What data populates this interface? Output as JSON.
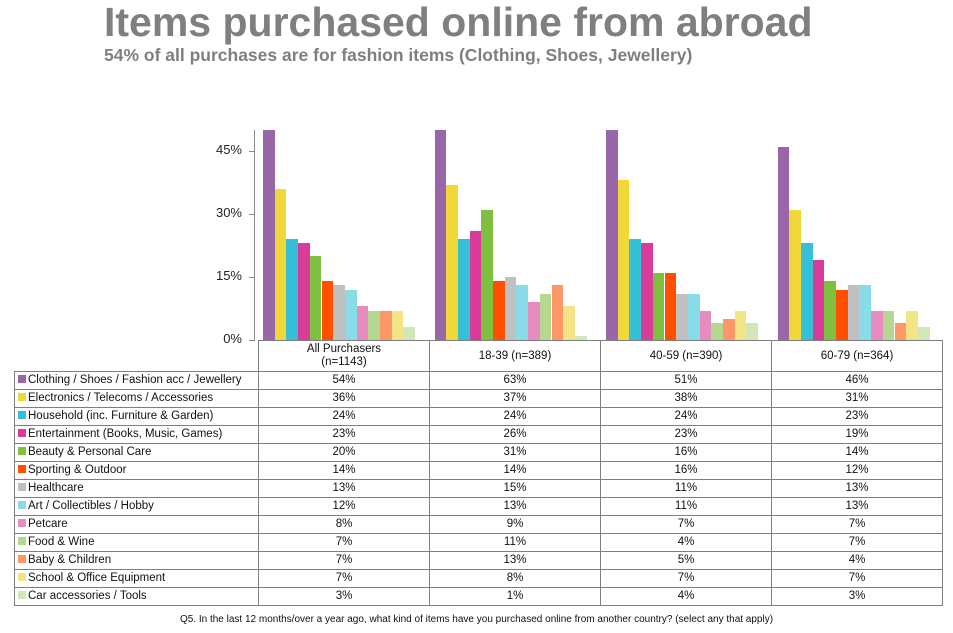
{
  "title": "Items purchased online from abroad",
  "subtitle": "54% of all purchases are for fashion items (Clothing, Shoes, Jewellery)",
  "footnote": "Q5. In the last 12 months/over a year ago, what kind of items have you purchased online from another country? (select any that apply)",
  "y_ticks": [
    "45%",
    "30%",
    "15%",
    "0%"
  ],
  "table": {
    "headers": [
      "All Purchasers\n(n=1143)",
      "18-39 (n=389)",
      "40-59 (n=390)",
      "60-79 (n=364)"
    ],
    "rows": [
      {
        "label": "Clothing / Shoes / Fashion acc / Jewellery",
        "color": "#9966a8",
        "values": [
          "54%",
          "63%",
          "51%",
          "46%"
        ]
      },
      {
        "label": "Electronics / Telecoms / Accessories",
        "color": "#f0d838",
        "values": [
          "36%",
          "37%",
          "38%",
          "31%"
        ]
      },
      {
        "label": "Household (inc. Furniture & Garden)",
        "color": "#36c0d8",
        "values": [
          "24%",
          "24%",
          "24%",
          "23%"
        ]
      },
      {
        "label": "Entertainment (Books, Music, Games)",
        "color": "#d83c98",
        "values": [
          "23%",
          "26%",
          "23%",
          "19%"
        ]
      },
      {
        "label": "Beauty & Personal Care",
        "color": "#80c040",
        "values": [
          "20%",
          "31%",
          "16%",
          "14%"
        ]
      },
      {
        "label": "Sporting & Outdoor",
        "color": "#ff5000",
        "values": [
          "14%",
          "14%",
          "16%",
          "12%"
        ]
      },
      {
        "label": "Healthcare",
        "color": "#c0c0c0",
        "values": [
          "13%",
          "15%",
          "11%",
          "13%"
        ]
      },
      {
        "label": "Art / Collectibles / Hobby",
        "color": "#88dce8",
        "values": [
          "12%",
          "13%",
          "11%",
          "13%"
        ]
      },
      {
        "label": "Petcare",
        "color": "#e88cc0",
        "values": [
          "8%",
          "9%",
          "7%",
          "7%"
        ]
      },
      {
        "label": "Food & Wine",
        "color": "#b4d890",
        "values": [
          "7%",
          "11%",
          "4%",
          "7%"
        ]
      },
      {
        "label": "Baby & Children",
        "color": "#ff9868",
        "values": [
          "7%",
          "13%",
          "5%",
          "4%"
        ]
      },
      {
        "label": "School & Office Equipment",
        "color": "#f4e488",
        "values": [
          "7%",
          "8%",
          "7%",
          "7%"
        ]
      },
      {
        "label": "Car accessories / Tools",
        "color": "#d0e8b8",
        "values": [
          "3%",
          "1%",
          "4%",
          "3%"
        ]
      }
    ]
  },
  "chart_data": {
    "type": "bar",
    "title": "Items purchased online from abroad",
    "subtitle": "54% of all purchases are for fashion items (Clothing, Shoes, Jewellery)",
    "xlabel": "",
    "ylabel": "",
    "ylim": [
      0,
      50
    ],
    "y_ticks": [
      0,
      15,
      30,
      45
    ],
    "grid": false,
    "legend_position": "table-bottom",
    "categories": [
      "All Purchasers (n=1143)",
      "18-39 (n=389)",
      "40-59 (n=390)",
      "60-79 (n=364)"
    ],
    "series": [
      {
        "name": "Clothing / Shoes / Fashion acc / Jewellery",
        "color": "#9966a8",
        "values": [
          54,
          63,
          51,
          46
        ]
      },
      {
        "name": "Electronics / Telecoms / Accessories",
        "color": "#f0d838",
        "values": [
          36,
          37,
          38,
          31
        ]
      },
      {
        "name": "Household (inc. Furniture & Garden)",
        "color": "#36c0d8",
        "values": [
          24,
          24,
          24,
          23
        ]
      },
      {
        "name": "Entertainment (Books, Music, Games)",
        "color": "#d83c98",
        "values": [
          23,
          26,
          23,
          19
        ]
      },
      {
        "name": "Beauty & Personal Care",
        "color": "#80c040",
        "values": [
          20,
          31,
          16,
          14
        ]
      },
      {
        "name": "Sporting & Outdoor",
        "color": "#ff5000",
        "values": [
          14,
          14,
          16,
          12
        ]
      },
      {
        "name": "Healthcare",
        "color": "#c0c0c0",
        "values": [
          13,
          15,
          11,
          13
        ]
      },
      {
        "name": "Art / Collectibles / Hobby",
        "color": "#88dce8",
        "values": [
          12,
          13,
          11,
          13
        ]
      },
      {
        "name": "Petcare",
        "color": "#e88cc0",
        "values": [
          8,
          9,
          7,
          7
        ]
      },
      {
        "name": "Food & Wine",
        "color": "#b4d890",
        "values": [
          7,
          11,
          4,
          7
        ]
      },
      {
        "name": "Baby & Children",
        "color": "#ff9868",
        "values": [
          7,
          13,
          5,
          4
        ]
      },
      {
        "name": "School & Office Equipment",
        "color": "#f4e488",
        "values": [
          7,
          8,
          7,
          7
        ]
      },
      {
        "name": "Car accessories / Tools",
        "color": "#d0e8b8",
        "values": [
          3,
          1,
          4,
          3
        ]
      }
    ]
  }
}
